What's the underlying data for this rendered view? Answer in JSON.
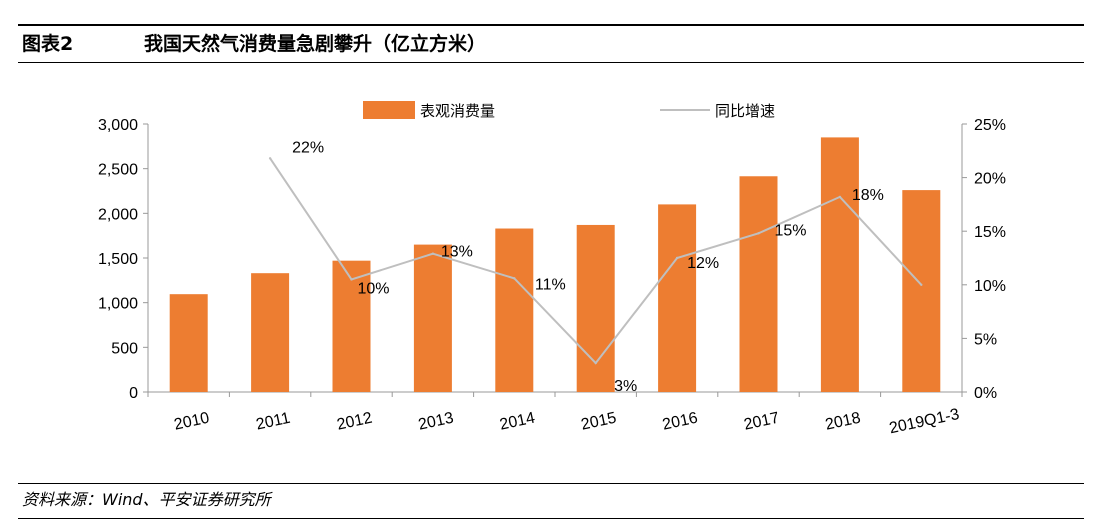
{
  "header": {
    "figure_label": "图表2",
    "title": "我国天然气消费量急剧攀升（亿立方米）"
  },
  "source": "资料来源：Wind、平安证券研究所",
  "colors": {
    "bar": "#ED7D31",
    "line": "#BFBFBF",
    "axis": "#999999"
  },
  "chart_data": {
    "type": "bar",
    "title": "我国天然气消费量急剧攀升（亿立方米）",
    "categories": [
      "2010",
      "2011",
      "2012",
      "2013",
      "2014",
      "2015",
      "2016",
      "2017",
      "2018",
      "2019Q1-3"
    ],
    "series": [
      {
        "name": "表观消费量",
        "type": "bar",
        "axis": "left",
        "values": [
          1095,
          1330,
          1470,
          1650,
          1830,
          1870,
          2100,
          2415,
          2850,
          2260
        ]
      },
      {
        "name": "同比增速",
        "type": "line",
        "axis": "right",
        "values": [
          null,
          21.8,
          10.5,
          12.9,
          10.6,
          2.7,
          12.5,
          14.8,
          18.2,
          10.0
        ],
        "labels": [
          "",
          "22%",
          "10%",
          "13%",
          "11%",
          "3%",
          "12%",
          "15%",
          "18%",
          ""
        ]
      }
    ],
    "y_left": {
      "ylim": [
        0,
        3000
      ],
      "ticks": [
        0,
        500,
        1000,
        1500,
        2000,
        2500,
        3000
      ],
      "tick_labels": [
        "0",
        "500",
        "1,000",
        "1,500",
        "2,000",
        "2,500",
        "3,000"
      ]
    },
    "y_right": {
      "ylim": [
        0,
        25
      ],
      "ticks": [
        0,
        5,
        10,
        15,
        20,
        25
      ],
      "tick_labels": [
        "0%",
        "5%",
        "10%",
        "15%",
        "20%",
        "25%"
      ]
    },
    "legend": "top-center",
    "grid": false
  }
}
